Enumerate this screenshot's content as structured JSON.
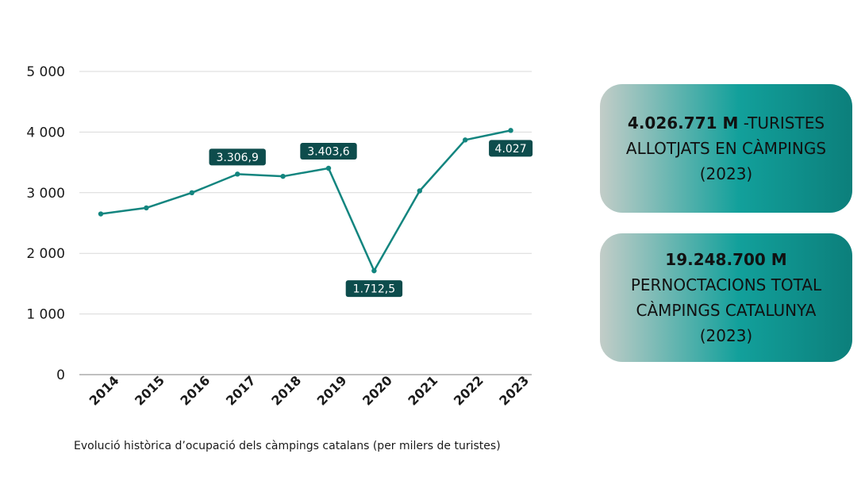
{
  "chart_data": {
    "type": "line",
    "title": "",
    "xlabel": "",
    "ylabel": "",
    "caption": "Evolució històrica d’ocupació dels càmpings catalans (per milers de turistes)",
    "x": [
      "2014",
      "2015",
      "2016",
      "2017",
      "2018",
      "2019",
      "2020",
      "2021",
      "2022",
      "2023"
    ],
    "series": [
      {
        "values": [
          2650,
          2750,
          3000,
          3306.9,
          3270,
          3403.6,
          1712.5,
          3030,
          3870,
          4027
        ]
      }
    ],
    "ylim": [
      0,
      5000
    ],
    "yticks": [
      0,
      1000,
      2000,
      3000,
      4000,
      5000
    ],
    "ytick_labels": [
      "0",
      "1 000",
      "2 000",
      "3 000",
      "4 000",
      "5 000"
    ],
    "grid": true,
    "line_color": "#13857F",
    "data_labels": [
      {
        "x": "2017",
        "text": "3.306,9",
        "position": "above"
      },
      {
        "x": "2019",
        "text": "3.403,6",
        "position": "above"
      },
      {
        "x": "2020",
        "text": "1.712,5",
        "position": "below"
      },
      {
        "x": "2023",
        "text": "4.027",
        "position": "below"
      }
    ],
    "label_bg_color": "#0D4C4C"
  },
  "cards": [
    {
      "bold": "4.026.771 M",
      "lines": [
        "-TURISTES",
        "ALLOTJATS EN CÀMPINGS",
        "(2023)"
      ]
    },
    {
      "bold": "19.248.700 M",
      "lines": [
        "PERNOCTACIONS TOTAL",
        "CÀMPINGS CATALUNYA",
        "(2023)"
      ]
    }
  ],
  "card_gradient": [
    "#C3CDC8",
    "#12A09B",
    "#0C7F7B"
  ]
}
